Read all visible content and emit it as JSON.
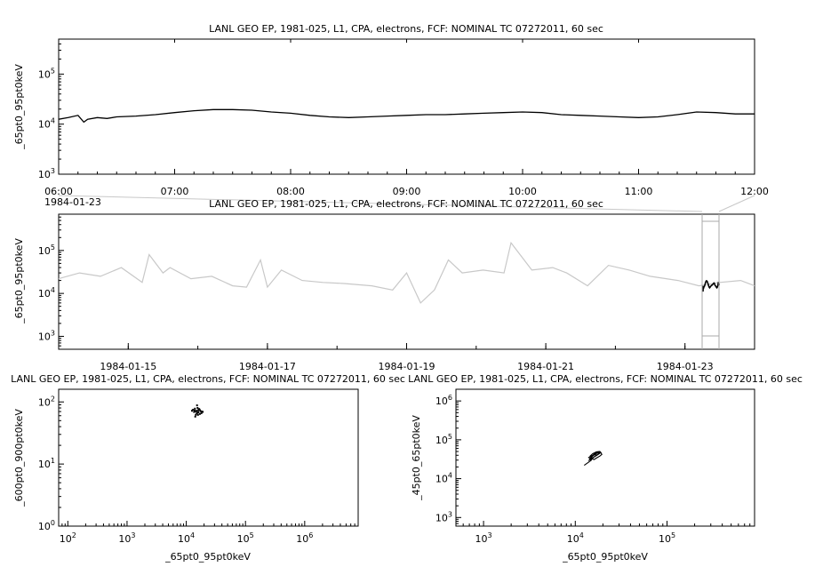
{
  "chart_data": [
    {
      "type": "line",
      "title": "LANL GEO EP, 1981-025, L1, CPA, electrons, FCF: NOMINAL TC 07272011, 60 sec",
      "xlabel": "",
      "ylabel": "_65pt0_95pt0keV",
      "date_label": "1984-01-23",
      "x_tick_labels": [
        "06:00",
        "07:00",
        "08:00",
        "09:00",
        "10:00",
        "11:00",
        "12:00"
      ],
      "xlim": [
        "1984-01-23T06:00",
        "1984-01-23T12:00"
      ],
      "y_scale": "log",
      "ylim": [
        1000,
        500000
      ],
      "y_ticks": [
        {
          "base": "10",
          "exp": "3",
          "value": 1000
        },
        {
          "base": "10",
          "exp": "4",
          "value": 10000
        },
        {
          "base": "10",
          "exp": "5",
          "value": 100000
        }
      ],
      "color": "#000000",
      "series": [
        {
          "x": [
            "06:00",
            "06:05",
            "06:10",
            "06:13",
            "06:15",
            "06:20",
            "06:25",
            "06:30",
            "06:40",
            "06:50",
            "07:00",
            "07:10",
            "07:20",
            "07:30",
            "07:40",
            "07:50",
            "08:00",
            "08:10",
            "08:20",
            "08:30",
            "08:40",
            "08:50",
            "09:00",
            "09:10",
            "09:20",
            "09:30",
            "09:40",
            "09:50",
            "10:00",
            "10:10",
            "10:20",
            "10:30",
            "10:40",
            "10:50",
            "11:00",
            "11:10",
            "11:20",
            "11:30",
            "11:40",
            "11:50",
            "12:00"
          ],
          "y": [
            12500,
            13500,
            15000,
            11000,
            12500,
            13500,
            13000,
            14000,
            14500,
            15500,
            17000,
            18500,
            19500,
            19500,
            19000,
            17500,
            16500,
            15000,
            14000,
            13500,
            14000,
            14500,
            15000,
            15500,
            15500,
            16000,
            16500,
            17000,
            17500,
            17000,
            15500,
            15000,
            14500,
            14000,
            13500,
            14000,
            15500,
            17500,
            17000,
            16000,
            16000
          ]
        }
      ]
    },
    {
      "type": "line",
      "title": "LANL GEO EP, 1981-025, L1, CPA, electrons, FCF: NOMINAL TC 07272011, 60 sec",
      "xlabel": "",
      "ylabel": "_65pt0_95pt0keV",
      "x_tick_labels": [
        "1984-01-15",
        "1984-01-17",
        "1984-01-19",
        "1984-01-21",
        "1984-01-23"
      ],
      "xlim": [
        "1984-01-14",
        "1984-01-24"
      ],
      "y_scale": "log",
      "ylim": [
        500,
        700000
      ],
      "y_ticks": [
        {
          "base": "10",
          "exp": "3",
          "value": 1000
        },
        {
          "base": "10",
          "exp": "4",
          "value": 10000
        },
        {
          "base": "10",
          "exp": "5",
          "value": 100000
        }
      ],
      "context_color": "#c8c8c8",
      "highlight_color": "#000000",
      "highlight_range": [
        "1984-01-23T06:00",
        "1984-01-23T12:00"
      ],
      "series": [
        {
          "x": [
            "01-14.00",
            "01-14.3",
            "01-14.6",
            "01-14.9",
            "01-15.2",
            "01-15.3",
            "01-15.5",
            "01-15.6",
            "01-15.9",
            "01-16.2",
            "01-16.5",
            "01-16.7",
            "01-16.9",
            "01-17.0",
            "01-17.2",
            "01-17.5",
            "01-17.8",
            "01-18.1",
            "01-18.5",
            "01-18.8",
            "01-19.0",
            "01-19.2",
            "01-19.4",
            "01-19.6",
            "01-19.8",
            "01-20.1",
            "01-20.4",
            "01-20.5",
            "01-20.8",
            "01-21.1",
            "01-21.3",
            "01-21.6",
            "01-21.9",
            "01-22.2",
            "01-22.5",
            "01-22.9",
            "01-23.2",
            "01-23.5",
            "01-23.8",
            "01-24.0"
          ],
          "y": [
            22000,
            30000,
            25000,
            40000,
            18000,
            80000,
            30000,
            40000,
            22000,
            25000,
            15000,
            14000,
            60000,
            14000,
            35000,
            20000,
            18000,
            17000,
            15000,
            12000,
            30000,
            6000,
            12000,
            60000,
            30000,
            35000,
            30000,
            150000,
            35000,
            40000,
            30000,
            15000,
            45000,
            35000,
            25000,
            20000,
            15000,
            18000,
            20000,
            15000
          ]
        }
      ]
    },
    {
      "type": "scatter",
      "title": "LANL GEO EP, 1981-025, L1, CPA, electrons, FCF: NOMINAL TC 07272011, 60 sec",
      "xlabel": "_65pt0_95pt0keV",
      "ylabel": "_600pt0_900pt0keV",
      "x_scale": "log",
      "y_scale": "log",
      "xlim": [
        70,
        8000000
      ],
      "ylim": [
        1,
        160
      ],
      "x_ticks": [
        {
          "base": "10",
          "exp": "2",
          "value": 100
        },
        {
          "base": "10",
          "exp": "3",
          "value": 1000
        },
        {
          "base": "10",
          "exp": "4",
          "value": 10000
        },
        {
          "base": "10",
          "exp": "5",
          "value": 100000
        },
        {
          "base": "10",
          "exp": "6",
          "value": 1000000
        }
      ],
      "y_ticks": [
        {
          "base": "10",
          "exp": "0",
          "value": 1
        },
        {
          "base": "10",
          "exp": "1",
          "value": 10
        },
        {
          "base": "10",
          "exp": "2",
          "value": 100
        }
      ],
      "points": [
        [
          13000,
          75
        ],
        [
          14000,
          70
        ],
        [
          15000,
          72
        ],
        [
          16000,
          68
        ],
        [
          17000,
          74
        ],
        [
          18000,
          66
        ],
        [
          15500,
          80
        ],
        [
          14500,
          62
        ],
        [
          16500,
          77
        ],
        [
          17500,
          71
        ],
        [
          13500,
          69
        ],
        [
          15000,
          65
        ],
        [
          16000,
          73
        ],
        [
          18500,
          70
        ],
        [
          14000,
          78
        ],
        [
          15500,
          67
        ],
        [
          17000,
          64
        ],
        [
          16200,
          76
        ],
        [
          14800,
          71
        ],
        [
          13800,
          73
        ],
        [
          15200,
          88
        ],
        [
          14200,
          58
        ],
        [
          19000,
          69
        ],
        [
          12500,
          72
        ],
        [
          15800,
          62
        ]
      ]
    },
    {
      "type": "line",
      "title": "LANL GEO EP, 1981-025, L1, CPA, electrons, FCF: NOMINAL TC 07272011, 60 sec",
      "xlabel": "_65pt0_95pt0keV",
      "ylabel": "_45pt0_65pt0keV",
      "x_scale": "log",
      "y_scale": "log",
      "xlim": [
        500,
        900000
      ],
      "ylim": [
        600,
        2000000
      ],
      "x_ticks": [
        {
          "base": "10",
          "exp": "3",
          "value": 1000
        },
        {
          "base": "10",
          "exp": "4",
          "value": 10000
        },
        {
          "base": "10",
          "exp": "5",
          "value": 100000
        }
      ],
      "y_ticks": [
        {
          "base": "10",
          "exp": "3",
          "value": 1000
        },
        {
          "base": "10",
          "exp": "4",
          "value": 10000
        },
        {
          "base": "10",
          "exp": "5",
          "value": 100000
        },
        {
          "base": "10",
          "exp": "6",
          "value": 1000000
        }
      ],
      "series": [
        {
          "x": [
            12500,
            13500,
            15000,
            14000,
            15500,
            16500,
            17500,
            19000,
            19500,
            18500,
            17000,
            16000,
            15000,
            14500,
            15500,
            17000,
            18500,
            19000,
            17500,
            16000,
            15000,
            14200,
            14800,
            16200,
            17800,
            18200,
            16800,
            15600,
            14600,
            15200,
            16600,
            17200,
            16400
          ],
          "y": [
            22000,
            25000,
            30000,
            35000,
            40000,
            45000,
            48000,
            46000,
            42000,
            38000,
            34000,
            31000,
            33000,
            38000,
            44000,
            49000,
            50000,
            47000,
            41000,
            36000,
            32000,
            30000,
            35000,
            42000,
            47000,
            45000,
            39000,
            35000,
            33000,
            37000,
            43000,
            46000,
            40000
          ]
        }
      ]
    }
  ]
}
